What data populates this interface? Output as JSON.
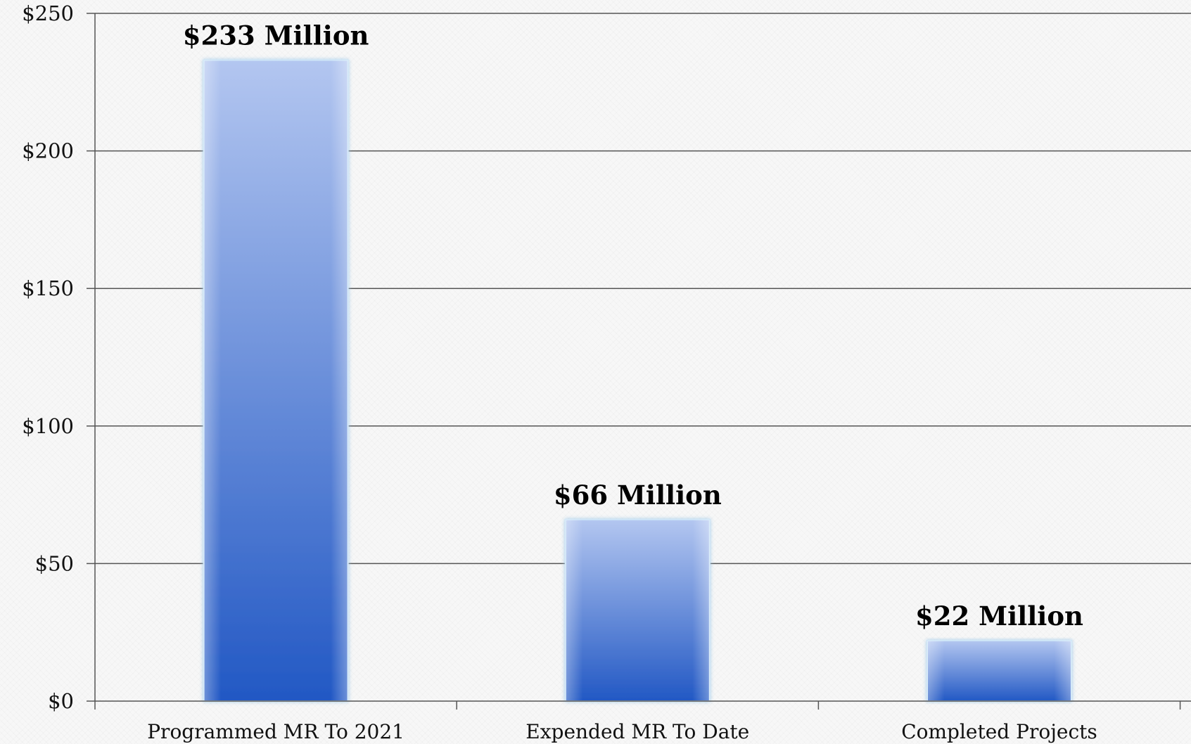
{
  "chart_data": {
    "type": "bar",
    "title": "",
    "xlabel": "",
    "ylabel": "",
    "categories": [
      "Programmed MR To 2021",
      "Expended MR To Date",
      "Completed Projects"
    ],
    "values": [
      233,
      66,
      22
    ],
    "data_labels": [
      "$233 Million",
      "$66 Million",
      "$22 Million"
    ],
    "ylim": [
      0,
      250
    ],
    "yticks": [
      0,
      50,
      100,
      150,
      200,
      250
    ],
    "ytick_labels": [
      "$0",
      "$50",
      "$100",
      "$150",
      "$200",
      "$250"
    ],
    "grid": true,
    "legend": "none",
    "colors": {
      "bar_top": "#b3c6f0",
      "bar_bottom": "#2258c4",
      "gridline": "#555555",
      "axis": "#555555"
    }
  }
}
